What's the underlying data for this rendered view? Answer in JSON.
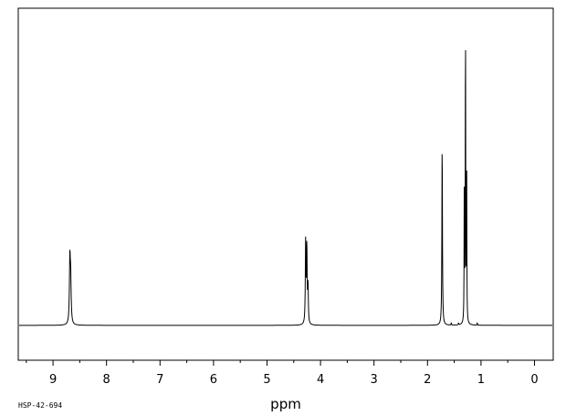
{
  "chart_data": {
    "type": "line",
    "title": "",
    "xlabel": "ppm",
    "ylabel": "",
    "sample_code": "HSP-42-694",
    "x_reversed": true,
    "xlim": [
      9.65,
      -0.35
    ],
    "ylim": [
      -0.11,
      1.0
    ],
    "x_ticks": [
      9,
      8,
      7,
      6,
      5,
      4,
      3,
      2,
      1,
      0
    ],
    "x_minor_step": 0.5,
    "grid": false,
    "line_color": "#000000",
    "peaks": [
      {
        "ppm": 8.685,
        "height": 0.2,
        "width": 0.01
      },
      {
        "ppm": 8.67,
        "height": 0.13,
        "width": 0.01
      },
      {
        "ppm": 4.278,
        "height": 0.26,
        "width": 0.007
      },
      {
        "ppm": 4.256,
        "height": 0.24,
        "width": 0.007
      },
      {
        "ppm": 4.234,
        "height": 0.12,
        "width": 0.007
      },
      {
        "ppm": 1.726,
        "height": 0.58,
        "width": 0.006
      },
      {
        "ppm": 1.312,
        "height": 0.49,
        "width": 0.004
      },
      {
        "ppm": 1.29,
        "height": 1.0,
        "width": 0.004
      },
      {
        "ppm": 1.268,
        "height": 0.49,
        "width": 0.004
      }
    ],
    "impurities": [
      {
        "ppm": 1.555,
        "height": 0.008
      },
      {
        "ppm": 1.42,
        "height": 0.006
      },
      {
        "ppm": 1.07,
        "height": 0.008
      }
    ]
  }
}
